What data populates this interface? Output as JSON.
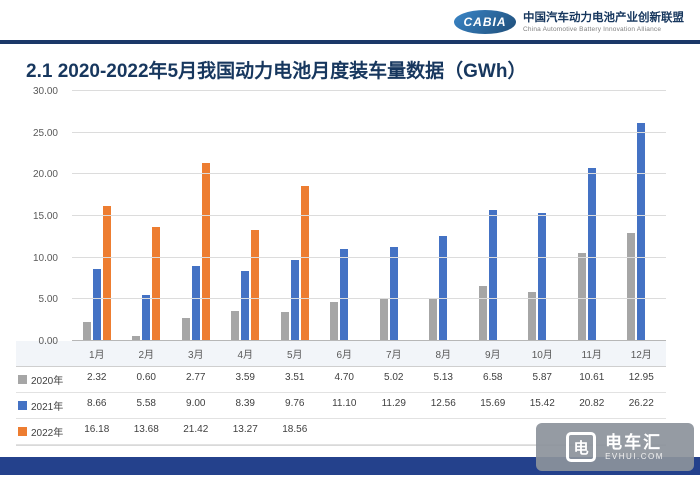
{
  "header": {
    "logo_text": "CABIA",
    "org_name_cn": "中国汽车动力电池产业创新联盟",
    "org_name_en": "China Automotive Battery Innovation Alliance"
  },
  "title": "2.1 2020-2022年5月我国动力电池月度装车量数据（GWh）",
  "watermark": {
    "brand": "电车汇",
    "domain": "EVHUI.COM",
    "icon_glyph": "电"
  },
  "colors": {
    "navy_rule": "#1b3868",
    "footer_bar": "#24418c",
    "title_text": "#17375e"
  },
  "chart_data": {
    "type": "bar",
    "categories": [
      "1月",
      "2月",
      "3月",
      "4月",
      "5月",
      "6月",
      "7月",
      "8月",
      "9月",
      "10月",
      "11月",
      "12月"
    ],
    "series": [
      {
        "name": "2020年",
        "color": "#a6a6a6",
        "values": [
          2.32,
          0.6,
          2.77,
          3.59,
          3.51,
          4.7,
          5.02,
          5.13,
          6.58,
          5.87,
          10.61,
          12.95
        ]
      },
      {
        "name": "2021年",
        "color": "#4472c4",
        "values": [
          8.66,
          5.58,
          9.0,
          8.39,
          9.76,
          11.1,
          11.29,
          12.56,
          15.69,
          15.42,
          20.82,
          26.22
        ]
      },
      {
        "name": "2022年",
        "color": "#ed7d31",
        "values": [
          16.18,
          13.68,
          21.42,
          13.27,
          18.56,
          null,
          null,
          null,
          null,
          null,
          null,
          null
        ]
      }
    ],
    "title": "2.1 2020-2022年5月我国动力电池月度装车量数据（GWh）",
    "xlabel": "",
    "ylabel": "",
    "ylim": [
      0,
      30
    ],
    "ytick_labels": [
      "0.00",
      "5.00",
      "10.00",
      "15.00",
      "20.00",
      "25.00",
      "30.00"
    ],
    "grid": true,
    "legend_position": "table-left"
  }
}
